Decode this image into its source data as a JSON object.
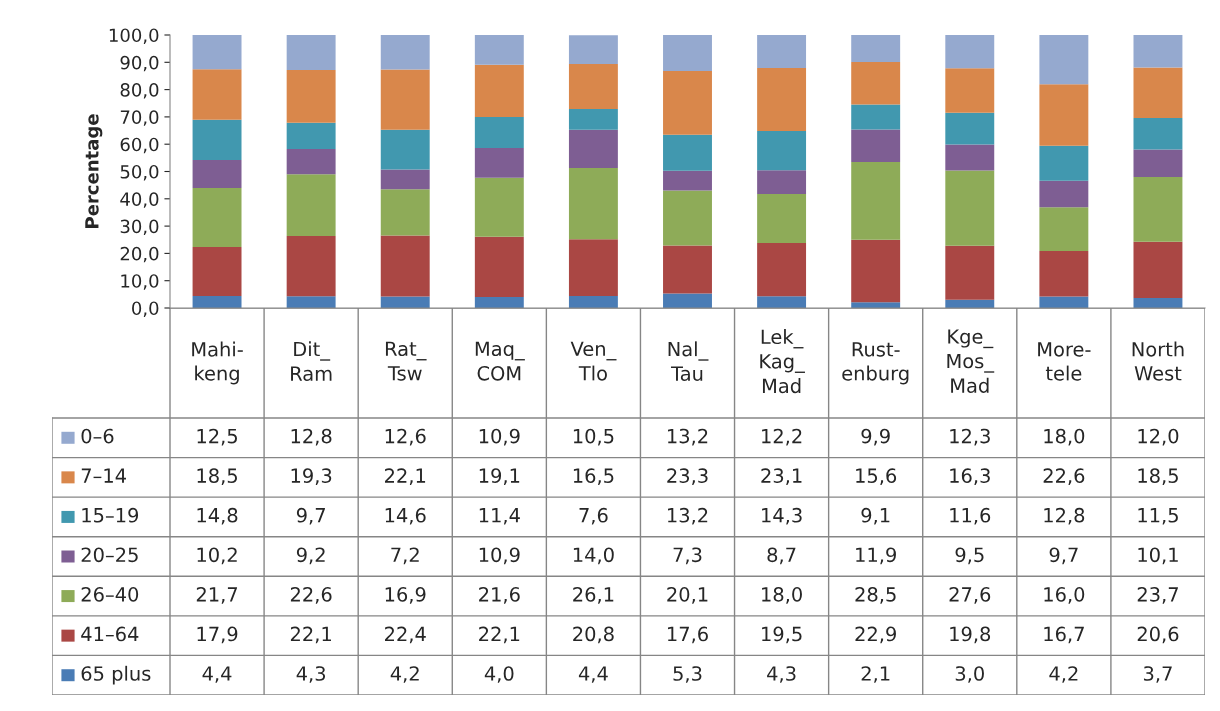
{
  "chart_data": {
    "type": "bar",
    "stacked": true,
    "ylabel": "Percentage",
    "categories": [
      "Mahi-\nkeng",
      "Dit_\nRam",
      "Rat_\nTsw",
      "Maq_\nCOM",
      "Ven_\nTlo",
      "Nal_\nTau",
      "Lek_\nKag_\nMad",
      "Rust-\nenburg",
      "Kge_\nMos_\nMad",
      "More-\ntele",
      "North\nWest"
    ],
    "ylim": [
      0,
      100
    ],
    "yticks": [
      {
        "value": 0,
        "label": "0,0"
      },
      {
        "value": 10,
        "label": "10,0"
      },
      {
        "value": 20,
        "label": "20,0"
      },
      {
        "value": 30,
        "label": "30,0"
      },
      {
        "value": 40,
        "label": "40,0"
      },
      {
        "value": 50,
        "label": "50,0"
      },
      {
        "value": 60,
        "label": "60,0"
      },
      {
        "value": 70,
        "label": "70,0"
      },
      {
        "value": 80,
        "label": "80,0"
      },
      {
        "value": 90,
        "label": "90,0"
      },
      {
        "value": 100,
        "label": "100,0"
      }
    ],
    "grid": false,
    "legend": "bottom left",
    "series": [
      {
        "name": "65 plus",
        "color": "#4a7cb5",
        "values": [
          4.4,
          4.3,
          4.2,
          4.0,
          4.4,
          5.3,
          4.3,
          2.1,
          3.0,
          4.2,
          3.7
        ],
        "value_labels": [
          "4,4",
          "4,3",
          "4,2",
          "4,0",
          "4,4",
          "5,3",
          "4,3",
          "2,1",
          "3,0",
          "4,2",
          "3,7"
        ]
      },
      {
        "name": "41–64",
        "color": "#aa4744",
        "values": [
          17.9,
          22.1,
          22.4,
          22.1,
          20.8,
          17.6,
          19.5,
          22.9,
          19.8,
          16.7,
          20.6
        ],
        "value_labels": [
          "17,9",
          "22,1",
          "22,4",
          "22,1",
          "20,8",
          "17,6",
          "19,5",
          "22,9",
          "19,8",
          "16,7",
          "20,6"
        ]
      },
      {
        "name": "26–40",
        "color": "#8eab58",
        "values": [
          21.7,
          22.6,
          16.9,
          21.6,
          26.1,
          20.1,
          18.0,
          28.5,
          27.6,
          16.0,
          23.7
        ],
        "value_labels": [
          "21,7",
          "22,6",
          "16,9",
          "21,6",
          "26,1",
          "20,1",
          "18,0",
          "28,5",
          "27,6",
          "16,0",
          "23,7"
        ]
      },
      {
        "name": "20–25",
        "color": "#7e5e93",
        "values": [
          10.2,
          9.2,
          7.2,
          10.9,
          14.0,
          7.3,
          8.7,
          11.9,
          9.5,
          9.7,
          10.1
        ],
        "value_labels": [
          "10,2",
          "9,2",
          "7,2",
          "10,9",
          "14,0",
          "7,3",
          "8,7",
          "11,9",
          "9,5",
          "9,7",
          "10,1"
        ]
      },
      {
        "name": "15–19",
        "color": "#4198af",
        "values": [
          14.8,
          9.7,
          14.6,
          11.4,
          7.6,
          13.2,
          14.3,
          9.1,
          11.6,
          12.8,
          11.5
        ],
        "value_labels": [
          "14,8",
          "9,7",
          "14,6",
          "11,4",
          "7,6",
          "13,2",
          "14,3",
          "9,1",
          "11,6",
          "12,8",
          "11,5"
        ]
      },
      {
        "name": "7–14",
        "color": "#d9874b",
        "values": [
          18.5,
          19.3,
          22.1,
          19.1,
          16.5,
          23.3,
          23.1,
          15.6,
          16.3,
          22.6,
          18.5
        ],
        "value_labels": [
          "18,5",
          "19,3",
          "22,1",
          "19,1",
          "16,5",
          "23,3",
          "23,1",
          "15,6",
          "16,3",
          "22,6",
          "18,5"
        ]
      },
      {
        "name": "0–6",
        "color": "#95a9cf",
        "values": [
          12.5,
          12.8,
          12.6,
          10.9,
          10.5,
          13.2,
          12.2,
          9.9,
          12.3,
          18.0,
          12.0
        ],
        "value_labels": [
          "12,5",
          "12,8",
          "12,6",
          "10,9",
          "10,5",
          "13,2",
          "12,2",
          "9,9",
          "12,3",
          "18,0",
          "12,0"
        ]
      }
    ]
  }
}
